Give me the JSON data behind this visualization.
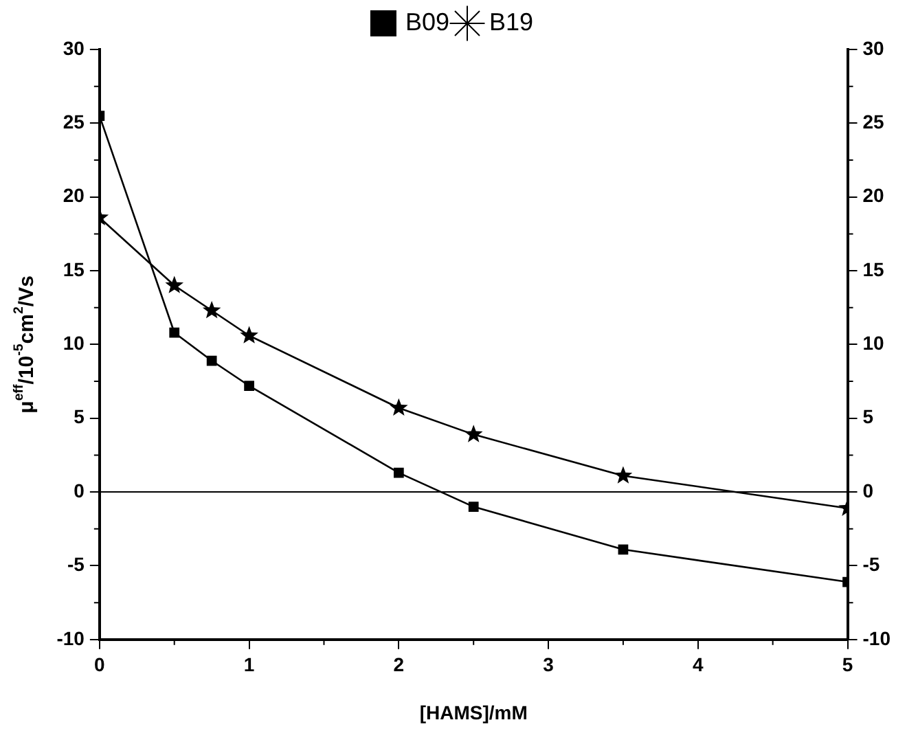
{
  "chart_data": {
    "type": "line",
    "xlabel": "[HAMS]/mM",
    "ylabel": "μ$^{eff}$/10$^{-5}$cm$^{2}$/Vs",
    "x": [
      0,
      0.5,
      0.75,
      1,
      2,
      2.5,
      3.5,
      5
    ],
    "series": [
      {
        "name": "B09",
        "color": "#000000",
        "marker": "square",
        "values": [
          25.5,
          10.8,
          8.9,
          7.2,
          1.3,
          -1.0,
          -3.9,
          -6.1
        ]
      },
      {
        "name": "B19",
        "color": "#000000",
        "marker": "star",
        "values": [
          18.6,
          14.0,
          12.3,
          10.6,
          5.7,
          3.9,
          1.1,
          -1.1
        ]
      }
    ],
    "xlim": [
      0,
      5
    ],
    "xticks": [
      0,
      1,
      2,
      3,
      4,
      5
    ],
    "ylim": [
      -10,
      30
    ],
    "yticks": [
      -10,
      -5,
      0,
      5,
      10,
      15,
      20,
      25,
      30
    ],
    "y2lim": [
      -10,
      30
    ],
    "y2ticks": [
      -10,
      -5,
      0,
      5,
      10,
      15,
      20,
      25,
      30
    ],
    "ref_lines": [
      {
        "axis": "y",
        "value": 0,
        "color": "#000000"
      }
    ],
    "grid": false,
    "legend": "top",
    "line_style": "solid"
  }
}
